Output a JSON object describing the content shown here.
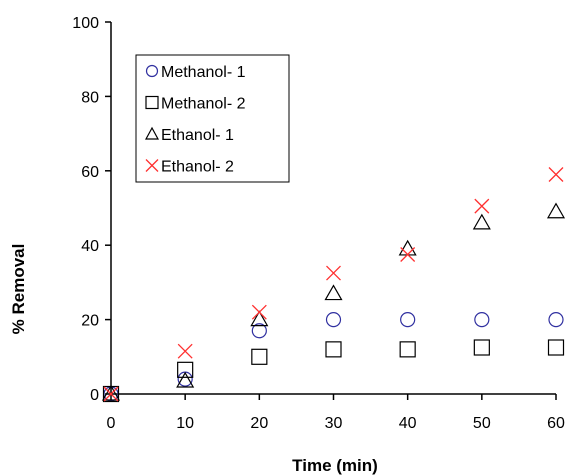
{
  "chart_data": {
    "type": "scatter",
    "title": "",
    "xlabel": "Time (min)",
    "ylabel": "% Removal",
    "xlim": [
      0,
      60
    ],
    "ylim": [
      0,
      100
    ],
    "xticks": [
      "0",
      "10",
      "20",
      "30",
      "40",
      "50",
      "60"
    ],
    "yticks": [
      "0",
      "20",
      "40",
      "60",
      "80",
      "100"
    ],
    "grid": false,
    "legend_position": "top-left",
    "series": [
      {
        "name": "Methanol- 1",
        "marker": "circle",
        "color": "#3030a0",
        "points": [
          [
            0,
            0
          ],
          [
            10,
            4
          ],
          [
            20,
            17
          ],
          [
            30,
            20
          ],
          [
            40,
            20
          ],
          [
            50,
            20
          ],
          [
            60,
            20
          ]
        ]
      },
      {
        "name": "Methanol- 2",
        "marker": "square",
        "color": "#000000",
        "points": [
          [
            0,
            0
          ],
          [
            10,
            6.5
          ],
          [
            20,
            10
          ],
          [
            30,
            12
          ],
          [
            40,
            12
          ],
          [
            50,
            12.5
          ],
          [
            60,
            12.5
          ]
        ]
      },
      {
        "name": "Ethanol- 1",
        "marker": "triangle",
        "color": "#000000",
        "points": [
          [
            0,
            0
          ],
          [
            10,
            3.5
          ],
          [
            20,
            20
          ],
          [
            30,
            27
          ],
          [
            40,
            39
          ],
          [
            50,
            46
          ],
          [
            60,
            49
          ]
        ]
      },
      {
        "name": "Ethanol- 2",
        "marker": "x",
        "color": "#ff3030",
        "points": [
          [
            0,
            0
          ],
          [
            10,
            11.5
          ],
          [
            20,
            22
          ],
          [
            30,
            32.5
          ],
          [
            40,
            37.5
          ],
          [
            50,
            50.5
          ],
          [
            60,
            59
          ]
        ]
      }
    ]
  }
}
